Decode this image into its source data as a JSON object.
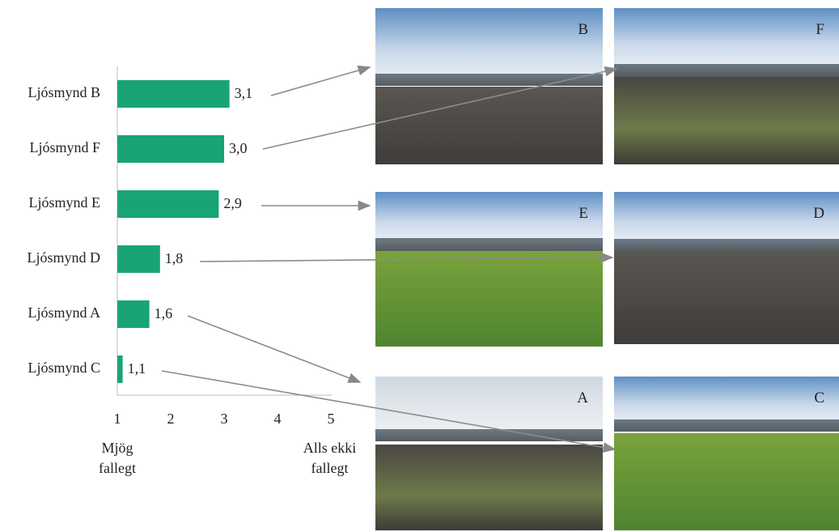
{
  "chart_data": {
    "type": "bar",
    "orientation": "horizontal",
    "categories": [
      "Ljósmynd B",
      "Ljósmynd F",
      "Ljósmynd E",
      "Ljósmynd D",
      "Ljósmynd A",
      "Ljósmynd C"
    ],
    "values": [
      3.1,
      3.0,
      2.9,
      1.8,
      1.6,
      1.1
    ],
    "value_labels": [
      "3,1",
      "3,0",
      "2,9",
      "1,8",
      "1,6",
      "1,1"
    ],
    "color": "#19a476",
    "xlim": [
      1,
      5
    ],
    "xticks": [
      1,
      2,
      3,
      4,
      5
    ],
    "x_low_label": "Mjög fallegt",
    "x_high_label": "Alls ekki fallegt"
  },
  "photos": [
    {
      "label": "B"
    },
    {
      "label": "F"
    },
    {
      "label": "E"
    },
    {
      "label": "D"
    },
    {
      "label": "A"
    },
    {
      "label": "C"
    }
  ]
}
